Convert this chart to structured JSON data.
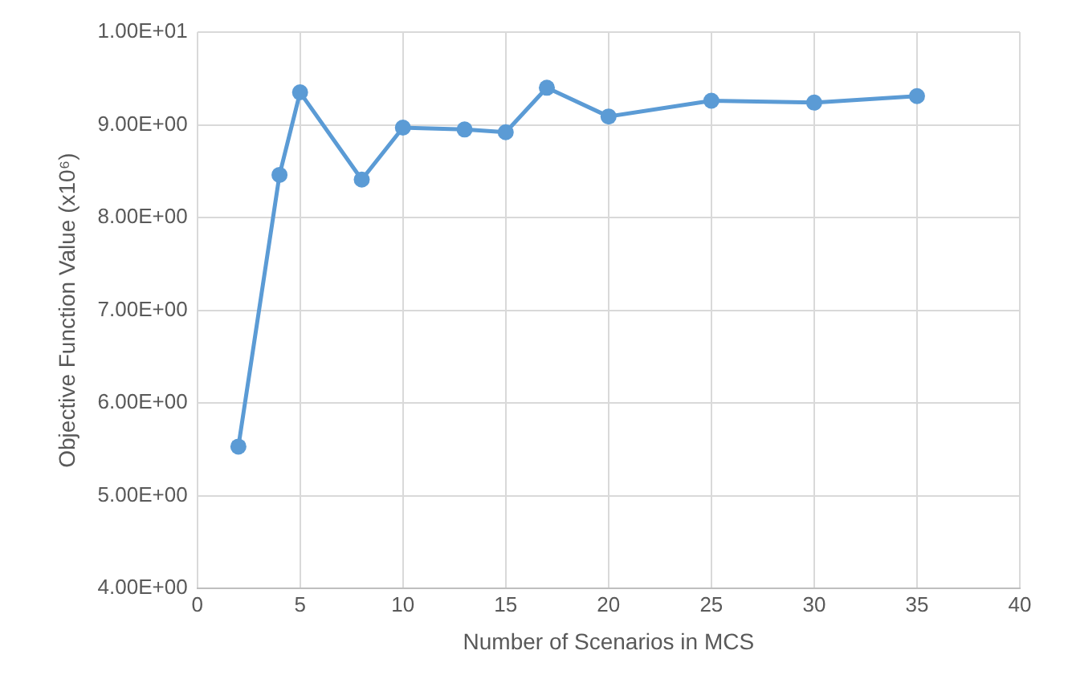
{
  "chart_data": {
    "type": "line",
    "xlabel": "Number of Scenarios in MCS",
    "ylabel": "Objective Function Value (x10⁶)",
    "x": [
      2,
      4,
      5,
      8,
      10,
      13,
      15,
      17,
      20,
      25,
      30,
      35
    ],
    "series": [
      {
        "color": "#5b9bd5",
        "values": [
          5.53,
          8.46,
          9.35,
          8.41,
          8.97,
          8.95,
          8.92,
          9.4,
          9.09,
          9.26,
          9.24,
          9.31
        ]
      }
    ],
    "xlim": [
      0,
      40
    ],
    "xticks": [
      0,
      5,
      10,
      15,
      20,
      25,
      30,
      35,
      40
    ],
    "ylim": [
      4,
      10
    ],
    "yticks": [
      {
        "value": 4,
        "label": "4.00E+00"
      },
      {
        "value": 5,
        "label": "5.00E+00"
      },
      {
        "value": 6,
        "label": "6.00E+00"
      },
      {
        "value": 7,
        "label": "7.00E+00"
      },
      {
        "value": 8,
        "label": "8.00E+00"
      },
      {
        "value": 9,
        "label": "9.00E+00"
      },
      {
        "value": 10,
        "label": "1.00E+01"
      }
    ],
    "grid": true,
    "marker": "circle",
    "line_style": "solid"
  }
}
